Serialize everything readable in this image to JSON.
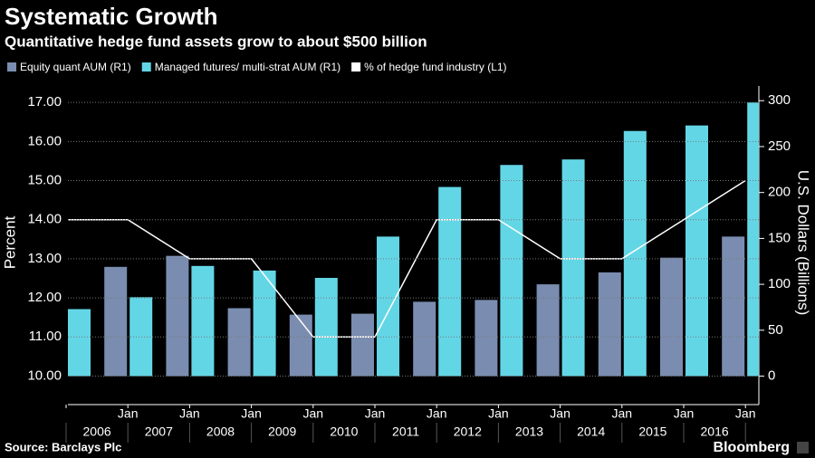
{
  "chart_data": {
    "type": "bar",
    "title": "Systematic Growth",
    "subtitle": "Quantitative hedge fund assets grow to about $500 billion",
    "categories": [
      null,
      "Jan",
      "Jan",
      "Jan",
      "Jan",
      "Jan",
      "Jan",
      "Jan",
      "Jan",
      "Jan",
      "Jan",
      "Jan"
    ],
    "years": [
      "2006",
      "2007",
      "2008",
      "2009",
      "2010",
      "2011",
      "2012",
      "2013",
      "2014",
      "2015",
      "2016"
    ],
    "series": [
      {
        "name": "Equity quant AUM (R1)",
        "color": "#7a8db0",
        "type": "bar",
        "axis": "y2",
        "values": [
          null,
          119,
          131,
          74,
          67,
          68,
          81,
          83,
          100,
          113,
          129,
          152
        ]
      },
      {
        "name": "Managed futures/ multi-strat AUM (R1)",
        "color": "#63d6e6",
        "type": "bar",
        "axis": "y2",
        "values": [
          73,
          86,
          120,
          115,
          107,
          152,
          206,
          230,
          236,
          267,
          273,
          298
        ]
      },
      {
        "name": "% of hedge fund industry (L1)",
        "color": "#ffffff",
        "type": "line",
        "axis": "y",
        "values": [
          14.0,
          14.0,
          13.0,
          13.0,
          11.0,
          11.0,
          14.0,
          14.0,
          13.0,
          13.0,
          14.0,
          15.0
        ]
      }
    ],
    "ylabel": "Percent",
    "y2label": "U.S. Dollars (Billions)",
    "ylim": [
      9.27,
      17.42
    ],
    "yticks": [
      {
        "value": 10,
        "label": "10.00"
      },
      {
        "value": 11,
        "label": "11.00"
      },
      {
        "value": 12,
        "label": "12.00"
      },
      {
        "value": 13,
        "label": "13.00"
      },
      {
        "value": 14,
        "label": "14.00"
      },
      {
        "value": 15,
        "label": "15.00"
      },
      {
        "value": 16,
        "label": "16.00"
      },
      {
        "value": 17,
        "label": "17.00"
      }
    ],
    "y2lim": [
      -31,
      316
    ],
    "y2ticks": [
      0,
      50,
      100,
      150,
      200,
      250,
      300
    ],
    "grid": true,
    "source": "Source: Barclays Plc",
    "brand": "Bloomberg"
  }
}
